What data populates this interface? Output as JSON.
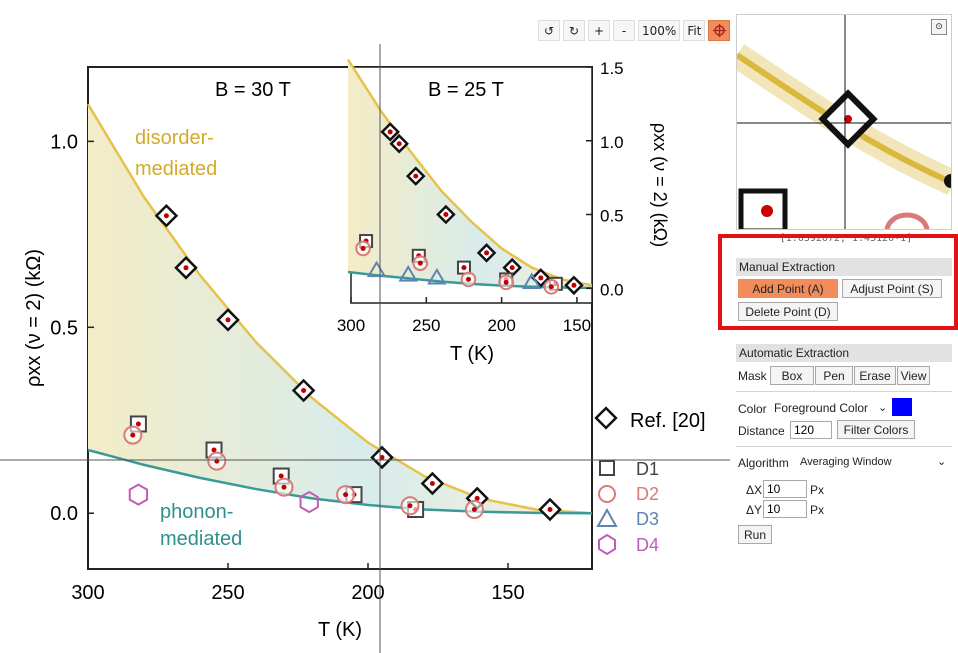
{
  "toolbar": {
    "rotate_ccw": "↺",
    "rotate_cw": "↻",
    "zoom_in": "+",
    "zoom_out": "-",
    "zoom_level": "100%",
    "fit_label": "Fit",
    "crosshair_icon": "crosshair-icon"
  },
  "figure": {
    "main_title": "B = 30 T",
    "inset_title": "B = 25 T",
    "main_ylabel": "ρxx (ν = 2) (kΩ)",
    "main_xlabel": "T (K)",
    "inset_ylabel": "ρxx (ν = 2) (kΩ)",
    "inset_xlabel": "T (K)",
    "annotation_disorder_1": "disorder-",
    "annotation_disorder_2": "mediated",
    "annotation_phonon_1": "phonon-",
    "annotation_phonon_2": "mediated",
    "legend": [
      "Ref. [20]",
      "D1",
      "D2",
      "D3",
      "D4"
    ],
    "colors": {
      "disorder_curve": "#e6c24a",
      "phonon_curve": "#3a9a98",
      "ref": "#111111",
      "d1": "#444444",
      "d2": "#d87a78",
      "d3": "#5f84b4",
      "d4": "#c25bb6",
      "marker_dot": "#c00000"
    }
  },
  "chart_data": [
    {
      "type": "scatter",
      "title": "B = 30 T",
      "xlabel": "T (K)",
      "ylabel": "ρxx (ν = 2) (kΩ)",
      "xlim": [
        300,
        120
      ],
      "ylim": [
        -0.15,
        1.2
      ],
      "xticks": [
        300,
        250,
        200,
        150
      ],
      "yticks": [
        0.0,
        0.5,
        1.0
      ],
      "legend_position": "right",
      "curves": [
        {
          "name": "disorder-mediated",
          "x": [
            300,
            280,
            260,
            240,
            220,
            200,
            180,
            160,
            140,
            120
          ],
          "y": [
            1.1,
            0.85,
            0.64,
            0.46,
            0.31,
            0.19,
            0.1,
            0.04,
            0.01,
            0.0
          ]
        },
        {
          "name": "phonon-mediated",
          "x": [
            300,
            280,
            260,
            240,
            220,
            200,
            180,
            160,
            140,
            120
          ],
          "y": [
            0.17,
            0.13,
            0.095,
            0.065,
            0.04,
            0.022,
            0.01,
            0.004,
            0.001,
            0.0
          ]
        }
      ],
      "series": [
        {
          "name": "Ref. [20]",
          "marker": "diamond",
          "x": [
            272,
            265,
            250,
            223,
            195,
            177,
            161,
            135
          ],
          "y": [
            0.8,
            0.66,
            0.52,
            0.33,
            0.15,
            0.08,
            0.04,
            0.01
          ]
        },
        {
          "name": "D1",
          "marker": "square",
          "x": [
            282,
            255,
            231,
            205,
            183
          ],
          "y": [
            0.24,
            0.17,
            0.1,
            0.05,
            0.01
          ]
        },
        {
          "name": "D2",
          "marker": "circle",
          "x": [
            284,
            254,
            230,
            208,
            185,
            162
          ],
          "y": [
            0.21,
            0.14,
            0.07,
            0.05,
            0.02,
            0.01
          ]
        },
        {
          "name": "D4",
          "marker": "hexagon",
          "x": [
            282,
            221
          ],
          "y": [
            0.05,
            0.03
          ]
        }
      ]
    },
    {
      "type": "scatter",
      "title": "B = 25 T",
      "xlabel": "T (K)",
      "ylabel": "ρxx (ν = 2) (kΩ)",
      "xlim": [
        300,
        140
      ],
      "ylim": [
        -0.1,
        1.5
      ],
      "xticks": [
        300,
        250,
        200,
        150
      ],
      "yticks": [
        0.0,
        0.5,
        1.0,
        1.5
      ],
      "curves": [
        {
          "name": "disorder",
          "x": [
            302,
            280,
            260,
            240,
            220,
            200,
            180,
            160,
            140
          ],
          "y": [
            1.55,
            1.2,
            0.92,
            0.66,
            0.45,
            0.27,
            0.14,
            0.06,
            0.02
          ]
        },
        {
          "name": "phonon",
          "x": [
            302,
            280,
            260,
            240,
            220,
            200,
            180,
            160,
            140
          ],
          "y": [
            0.11,
            0.085,
            0.065,
            0.045,
            0.03,
            0.018,
            0.01,
            0.005,
            0.002
          ]
        }
      ],
      "series": [
        {
          "name": "Ref. [20]",
          "marker": "diamond",
          "x": [
            274,
            268,
            257,
            237,
            210,
            193,
            174,
            152
          ],
          "y": [
            1.06,
            0.98,
            0.76,
            0.5,
            0.24,
            0.14,
            0.07,
            0.02
          ]
        },
        {
          "name": "D1",
          "marker": "square",
          "x": [
            290,
            255,
            225,
            197,
            164
          ],
          "y": [
            0.32,
            0.22,
            0.14,
            0.06,
            0.03
          ]
        },
        {
          "name": "D2",
          "marker": "circle",
          "x": [
            292,
            254,
            222,
            197,
            167
          ],
          "y": [
            0.27,
            0.17,
            0.06,
            0.04,
            0.01
          ]
        },
        {
          "name": "D3",
          "marker": "triangle",
          "x": [
            283,
            262,
            243,
            180
          ],
          "y": [
            0.12,
            0.09,
            0.07,
            0.04
          ]
        }
      ]
    }
  ],
  "magnifier": {
    "toggle_icon": "⊙",
    "coordinate_readout": "[1.0392672, 1.45120-1]"
  },
  "manual_extraction": {
    "header": "Manual Extraction",
    "add_point": "Add Point (A)",
    "adjust_point": "Adjust Point (S)",
    "delete_point": "Delete Point (D)"
  },
  "automatic_extraction": {
    "header": "Automatic Extraction",
    "mask_label": "Mask",
    "mask_tools": [
      "Box",
      "Pen",
      "Erase",
      "View"
    ],
    "color_label": "Color",
    "color_mode": "Foreground Color",
    "swatch_color": "#0000ff",
    "distance_label": "Distance",
    "distance_value": "120",
    "filter_colors": "Filter Colors",
    "algorithm_label": "Algorithm",
    "algorithm_value": "Averaging Window",
    "dx_label": "ΔX",
    "dx_value": "10",
    "dx_unit": "Px",
    "dy_label": "ΔY",
    "dy_value": "10",
    "dy_unit": "Px",
    "run": "Run"
  }
}
